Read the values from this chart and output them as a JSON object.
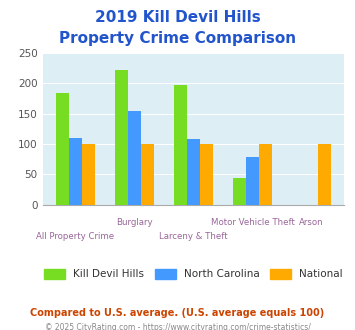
{
  "title_line1": "2019 Kill Devil Hills",
  "title_line2": "Property Crime Comparison",
  "categories": [
    "All Property Crime",
    "Burglary",
    "Larceny & Theft",
    "Motor Vehicle Theft",
    "Arson"
  ],
  "series": {
    "Kill Devil Hills": [
      183,
      222,
      197,
      44,
      0
    ],
    "North Carolina": [
      110,
      154,
      108,
      78,
      0
    ],
    "National": [
      100,
      100,
      100,
      100,
      100
    ]
  },
  "colors": {
    "Kill Devil Hills": "#77dd22",
    "North Carolina": "#4499ff",
    "National": "#ffaa00"
  },
  "ylim": [
    0,
    250
  ],
  "yticks": [
    0,
    50,
    100,
    150,
    200,
    250
  ],
  "plot_bg": "#ddeef5",
  "grid_color": "#ffffff",
  "title_color": "#2255cc",
  "xlabel_color": "#996699",
  "legend_label_color": "#333333",
  "footer_text": "Compared to U.S. average. (U.S. average equals 100)",
  "copyright_text": "© 2025 CityRating.com - https://www.cityrating.com/crime-statistics/",
  "footer_color": "#cc4400",
  "copyright_color": "#888888",
  "bar_width": 0.22,
  "series_names": [
    "Kill Devil Hills",
    "North Carolina",
    "National"
  ],
  "label_data": [
    [
      0,
      "All Property Crime",
      false
    ],
    [
      1,
      "Burglary",
      true
    ],
    [
      2,
      "Larceny & Theft",
      false
    ],
    [
      3,
      "Motor Vehicle Theft",
      true
    ],
    [
      4,
      "Arson",
      true
    ]
  ]
}
